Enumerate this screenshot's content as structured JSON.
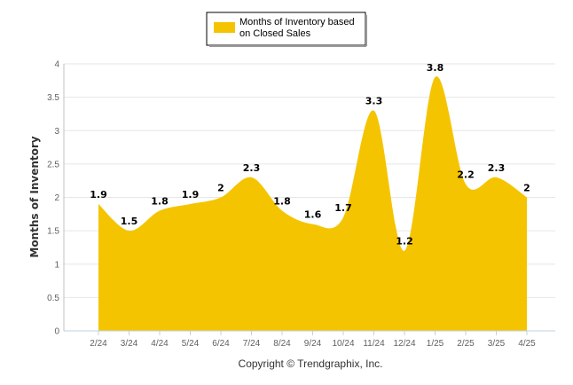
{
  "chart_data": {
    "type": "area",
    "categories": [
      "2/24",
      "3/24",
      "4/24",
      "5/24",
      "6/24",
      "7/24",
      "8/24",
      "9/24",
      "10/24",
      "11/24",
      "12/24",
      "1/25",
      "2/25",
      "3/25",
      "4/25"
    ],
    "series": [
      {
        "name": "Months of Inventory based on Closed Sales",
        "values": [
          1.9,
          1.5,
          1.8,
          1.9,
          2,
          2.3,
          1.8,
          1.6,
          1.7,
          3.3,
          1.2,
          3.8,
          2.2,
          2.3,
          2
        ]
      }
    ],
    "data_labels": [
      "1.9",
      "1.5",
      "1.8",
      "1.9",
      "2",
      "2.3",
      "1.8",
      "1.6",
      "1.7",
      "3.3",
      "1.2",
      "3.8",
      "2.2",
      "2.3",
      "2"
    ],
    "yticks": [
      "0",
      "0.5",
      "1",
      "1.5",
      "2",
      "2.5",
      "3",
      "3.5",
      "4"
    ],
    "ytick_values": [
      0,
      0.5,
      1,
      1.5,
      2,
      2.5,
      3,
      3.5,
      4
    ],
    "ylim": [
      0,
      4
    ],
    "ylabel": "Months of Inventory",
    "xlabel": "",
    "legend_lines": [
      "Months of Inventory based",
      "on Closed Sales"
    ],
    "legend_position": "top-center",
    "grid": true,
    "fill_color": "#f5c400",
    "credit": "Copyright © Trendgraphix, Inc."
  }
}
